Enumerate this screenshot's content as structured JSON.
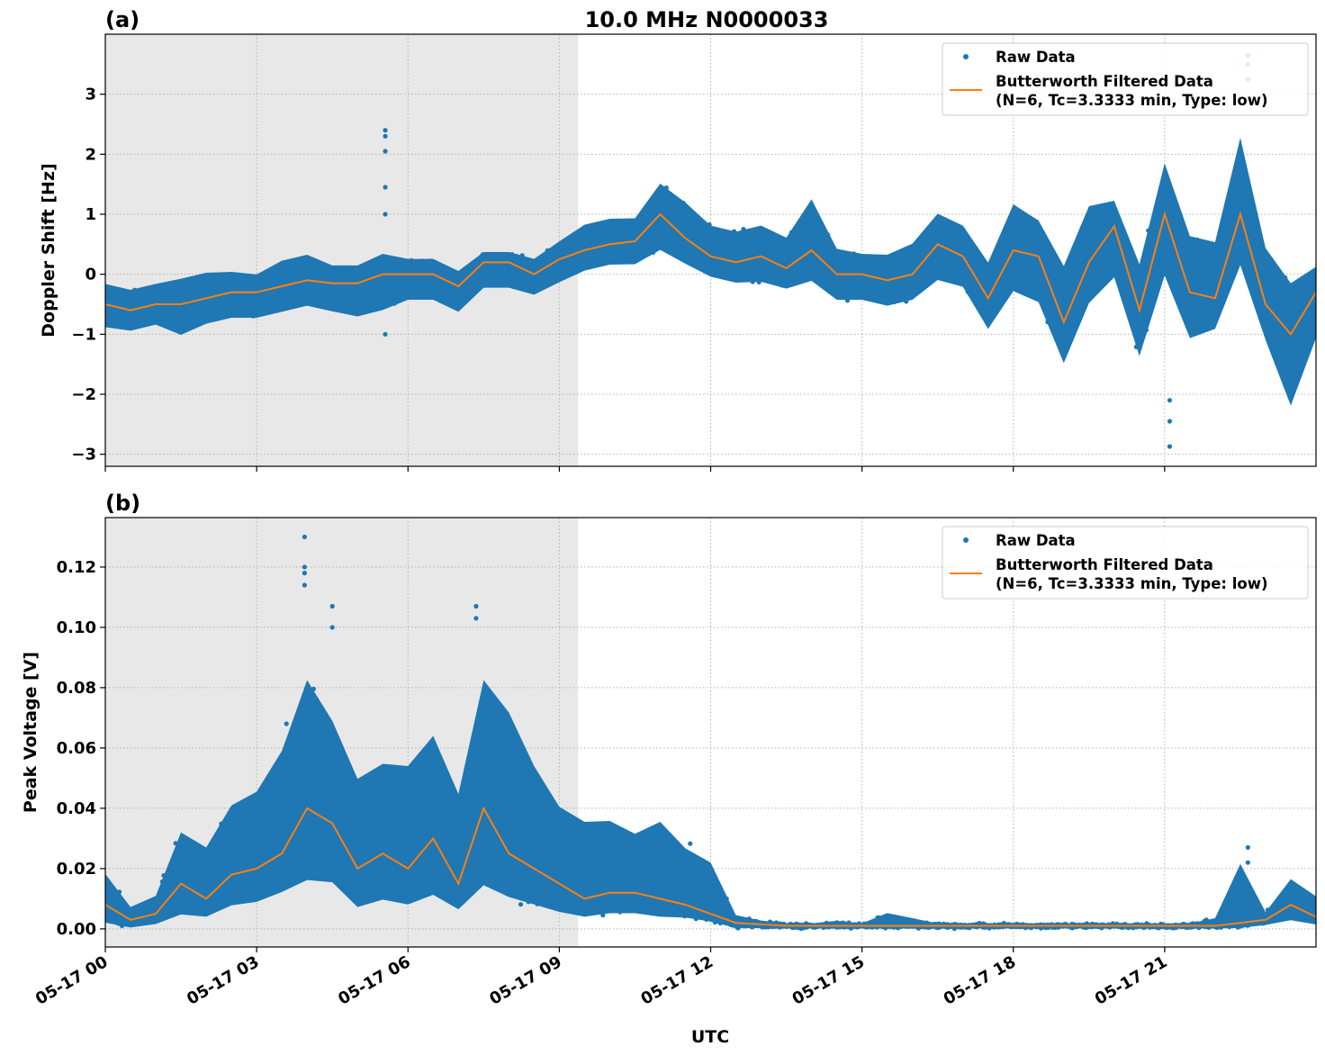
{
  "title": "10.0 MHz N0000033",
  "xlabel": "UTC",
  "x_tick_labels": [
    "05-17 00",
    "05-17 03",
    "05-17 06",
    "05-17 09",
    "05-17 12",
    "05-17 15",
    "05-17 18",
    "05-17 21"
  ],
  "colors": {
    "raw": "#1f77b4",
    "filtered": "#ff7f0e",
    "shade": "#e8e8e8"
  },
  "chart_data": [
    {
      "type": "scatter",
      "panel_label": "(a)",
      "ylabel": "Doppler Shift [Hz]",
      "x_unit": "hours UTC on 05-17",
      "xlim": [
        0,
        24
      ],
      "ylim": [
        -3.2,
        4.0
      ],
      "y_ticks": [
        3,
        2,
        1,
        0,
        -1,
        -2,
        -3
      ],
      "y_tick_labels": [
        "3",
        "2",
        "1",
        "0",
        "−1",
        "−2",
        "−3"
      ],
      "grid": true,
      "shaded_x_range": [
        0,
        9.37
      ],
      "legend": {
        "placement": "top-right",
        "entries": [
          "Raw Data",
          "Butterworth Filtered Data",
          "(N=6, Tc=3.3333 min, Type: low)"
        ]
      },
      "x": [
        0,
        0.5,
        1,
        1.5,
        2,
        2.5,
        3,
        3.5,
        4,
        4.5,
        5,
        5.5,
        6,
        6.5,
        7,
        7.5,
        8,
        8.5,
        9,
        9.5,
        10,
        10.5,
        11,
        11.5,
        12,
        12.5,
        13,
        13.5,
        14,
        14.5,
        15,
        15.5,
        16,
        16.5,
        17,
        17.5,
        18,
        18.5,
        19,
        19.5,
        20,
        20.5,
        21,
        21.5,
        22,
        22.5,
        23,
        23.5,
        24
      ],
      "series": [
        {
          "name": "Butterworth Filtered Data",
          "values": [
            -0.5,
            -0.6,
            -0.5,
            -0.5,
            -0.4,
            -0.3,
            -0.3,
            -0.2,
            -0.1,
            -0.15,
            -0.15,
            0.0,
            0.0,
            0.0,
            -0.2,
            0.2,
            0.2,
            0.0,
            0.25,
            0.4,
            0.5,
            0.55,
            1.0,
            0.6,
            0.3,
            0.2,
            0.3,
            0.1,
            0.4,
            0.0,
            0.0,
            -0.1,
            0.0,
            0.5,
            0.3,
            -0.4,
            0.4,
            0.3,
            -0.8,
            0.2,
            0.8,
            -0.6,
            1.0,
            -0.3,
            -0.4,
            1.0,
            -0.5,
            -1.0,
            -0.3
          ]
        },
        {
          "name": "Raw Data",
          "low": [
            -0.95,
            -1.0,
            -0.9,
            -1.1,
            -0.9,
            -0.8,
            -0.8,
            -0.7,
            -0.6,
            -0.7,
            -0.8,
            -0.7,
            -0.5,
            -0.5,
            -0.7,
            -0.3,
            -0.3,
            -0.4,
            -0.2,
            0.0,
            0.1,
            0.1,
            0.3,
            0.1,
            -0.1,
            -0.2,
            -0.2,
            -0.3,
            -0.2,
            -0.5,
            -0.5,
            -0.6,
            -0.5,
            -0.2,
            -0.3,
            -1.0,
            -0.4,
            -0.6,
            -1.6,
            -0.6,
            -0.2,
            -1.5,
            -0.2,
            -1.2,
            -1.0,
            0.0,
            -1.2,
            -2.4,
            -1.2
          ],
          "high": [
            -0.1,
            -0.2,
            -0.1,
            0.0,
            0.1,
            0.1,
            0.05,
            0.3,
            0.4,
            0.2,
            0.2,
            0.4,
            0.3,
            0.3,
            0.1,
            0.4,
            0.4,
            0.3,
            0.6,
            0.9,
            1.0,
            1.0,
            1.6,
            1.3,
            0.9,
            0.8,
            0.9,
            0.7,
            1.4,
            0.5,
            0.4,
            0.4,
            0.6,
            1.1,
            0.9,
            0.3,
            1.3,
            1.0,
            0.3,
            1.3,
            1.3,
            0.3,
            2.0,
            0.8,
            0.7,
            2.5,
            0.6,
            0.0,
            0.2
          ]
        },
        {
          "name": "Raw Data outliers",
          "x": [
            5.55,
            5.55,
            5.55,
            5.55,
            5.55,
            5.55,
            22.65,
            22.65,
            22.65,
            21.1,
            21.1,
            21.1
          ],
          "values": [
            2.4,
            2.3,
            2.05,
            1.45,
            1.0,
            -1.0,
            3.65,
            3.5,
            3.25,
            -2.1,
            -2.45,
            -2.87
          ]
        }
      ]
    },
    {
      "type": "scatter",
      "panel_label": "(b)",
      "ylabel": "Peak Voltage [V]",
      "x_unit": "hours UTC on 05-17",
      "xlim": [
        0,
        24
      ],
      "ylim": [
        -0.006,
        0.1364
      ],
      "y_ticks": [
        0.12,
        0.1,
        0.08,
        0.06,
        0.04,
        0.02,
        0.0
      ],
      "y_tick_labels": [
        "0.12",
        "0.10",
        "0.08",
        "0.06",
        "0.04",
        "0.02",
        "0.00"
      ],
      "grid": true,
      "shaded_x_range": [
        0,
        9.37
      ],
      "legend": {
        "placement": "top-right",
        "entries": [
          "Raw Data",
          "Butterworth Filtered Data",
          "(N=6, Tc=3.3333 min, Type: low)"
        ]
      },
      "x": [
        0,
        0.5,
        1,
        1.5,
        2,
        2.5,
        3,
        3.5,
        4,
        4.5,
        5,
        5.5,
        6,
        6.5,
        7,
        7.5,
        8,
        8.5,
        9,
        9.5,
        10,
        10.5,
        11,
        11.5,
        12,
        12.5,
        13,
        13.5,
        14,
        14.5,
        15,
        15.5,
        16,
        16.5,
        17,
        17.5,
        18,
        18.5,
        19,
        19.5,
        20,
        20.5,
        21,
        21.5,
        22,
        22.5,
        23,
        23.5,
        24
      ],
      "series": [
        {
          "name": "Butterworth Filtered Data",
          "values": [
            0.008,
            0.003,
            0.005,
            0.015,
            0.01,
            0.018,
            0.02,
            0.025,
            0.04,
            0.035,
            0.02,
            0.025,
            0.02,
            0.03,
            0.015,
            0.04,
            0.025,
            0.02,
            0.015,
            0.01,
            0.012,
            0.012,
            0.01,
            0.008,
            0.005,
            0.002,
            0.0015,
            0.001,
            0.001,
            0.001,
            0.001,
            0.001,
            0.001,
            0.001,
            0.001,
            0.001,
            0.001,
            0.001,
            0.001,
            0.001,
            0.001,
            0.001,
            0.001,
            0.001,
            0.001,
            0.002,
            0.003,
            0.008,
            0.004
          ]
        },
        {
          "name": "Raw Data",
          "low": [
            0.001,
            0.0,
            0.001,
            0.003,
            0.003,
            0.006,
            0.007,
            0.01,
            0.012,
            0.012,
            0.005,
            0.007,
            0.006,
            0.008,
            0.005,
            0.01,
            0.008,
            0.006,
            0.004,
            0.003,
            0.004,
            0.004,
            0.003,
            0.003,
            0.002,
            0.0,
            0.0,
            0.0,
            0.0,
            0.0,
            0.0,
            0.0,
            0.0,
            0.0,
            0.0,
            0.0,
            0.0,
            0.0,
            0.0,
            0.0,
            0.0,
            0.0,
            0.0,
            0.0,
            0.0,
            0.0,
            0.001,
            0.002,
            0.001
          ],
          "high": [
            0.02,
            0.008,
            0.012,
            0.035,
            0.03,
            0.045,
            0.05,
            0.065,
            0.09,
            0.075,
            0.055,
            0.06,
            0.06,
            0.07,
            0.05,
            0.09,
            0.08,
            0.06,
            0.045,
            0.04,
            0.04,
            0.035,
            0.04,
            0.03,
            0.025,
            0.005,
            0.003,
            0.002,
            0.002,
            0.003,
            0.002,
            0.006,
            0.004,
            0.002,
            0.002,
            0.002,
            0.002,
            0.002,
            0.002,
            0.002,
            0.002,
            0.002,
            0.002,
            0.002,
            0.004,
            0.025,
            0.006,
            0.018,
            0.012
          ]
        },
        {
          "name": "Raw Data outliers",
          "x": [
            3.95,
            3.95,
            3.95,
            3.95,
            7.35,
            7.35,
            4.5,
            4.5,
            22.65,
            22.65
          ],
          "values": [
            0.13,
            0.12,
            0.118,
            0.114,
            0.107,
            0.103,
            0.107,
            0.1,
            0.027,
            0.022
          ]
        }
      ]
    }
  ]
}
